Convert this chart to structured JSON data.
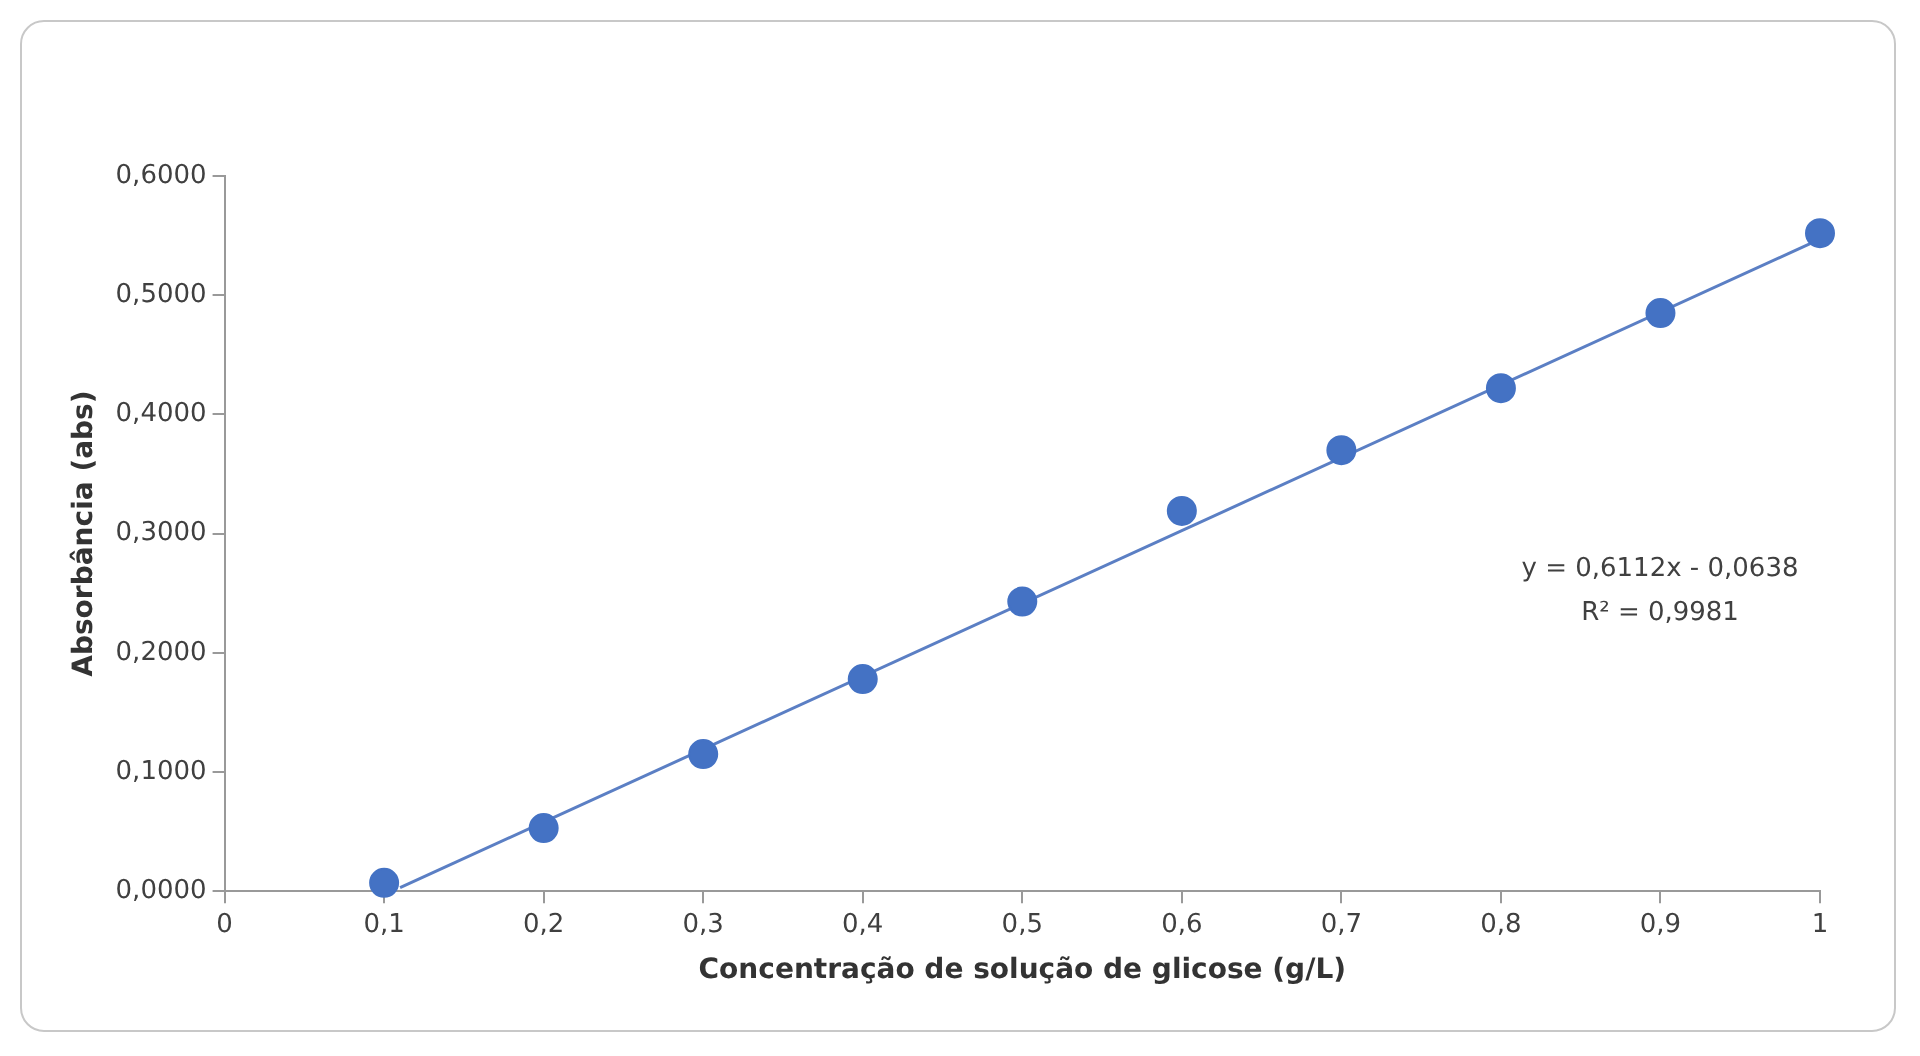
{
  "chart_data": {
    "type": "scatter",
    "xlabel": "Concentração de solução de glicose (g/L)",
    "ylabel": "Absorbância (abs)",
    "xlim": [
      0,
      1
    ],
    "xticks": [
      0,
      {
        "value": 0.1,
        "label": "0,1"
      },
      {
        "value": 0.2,
        "label": "0,2"
      },
      {
        "value": 0.3,
        "label": "0,3"
      },
      {
        "value": 0.4,
        "label": "0,4"
      },
      {
        "value": 0.5,
        "label": "0,5"
      },
      {
        "value": 0.6,
        "label": "0,6"
      },
      {
        "value": 0.7,
        "label": "0,7"
      },
      {
        "value": 0.8,
        "label": "0,8"
      },
      {
        "value": 0.9,
        "label": "0,9"
      },
      1
    ],
    "ylim": [
      0,
      0.6
    ],
    "yticks": [
      {
        "value": 0,
        "label": "0,0000"
      },
      {
        "value": 0.1,
        "label": "0,1000"
      },
      {
        "value": 0.2,
        "label": "0,2000"
      },
      {
        "value": 0.3,
        "label": "0,3000"
      },
      {
        "value": 0.4,
        "label": "0,4000"
      },
      {
        "value": 0.5,
        "label": "0,5000"
      },
      {
        "value": 0.6,
        "label": "0,6000"
      }
    ],
    "grid": false,
    "legend": false,
    "marker": "circle",
    "x": [
      0.1,
      0.2,
      0.3,
      0.4,
      0.5,
      0.6,
      0.7,
      0.8,
      0.9,
      1
    ],
    "series": [
      {
        "type": "scatter",
        "color": "#4472c4",
        "values": [
          0.007,
          0.053,
          0.115,
          0.178,
          0.243,
          0.319,
          0.37,
          0.422,
          0.485,
          0.552
        ]
      },
      {
        "type": "line",
        "color": "#5b7fc4",
        "x": [
          0.11,
          1
        ],
        "values": [
          0.003,
          0.547
        ],
        "marker": "none"
      }
    ],
    "annotations": [
      "y = 0,6112x - 0,0638",
      "R² = 0,9981"
    ]
  }
}
